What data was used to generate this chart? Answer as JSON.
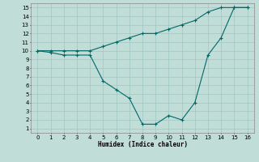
{
  "xlabel": "Humidex (Indice chaleur)",
  "bg_color": "#c0ddd8",
  "grid_color": "#9ec8c0",
  "line_color": "#006868",
  "xlim": [
    -0.5,
    16.5
  ],
  "ylim": [
    0.5,
    15.5
  ],
  "xticks": [
    0,
    1,
    2,
    3,
    4,
    5,
    6,
    7,
    8,
    9,
    10,
    11,
    12,
    13,
    14,
    15,
    16
  ],
  "yticks": [
    1,
    2,
    3,
    4,
    5,
    6,
    7,
    8,
    9,
    10,
    11,
    12,
    13,
    14,
    15
  ],
  "series1_x": [
    0,
    1,
    2,
    3,
    4,
    5,
    6,
    7,
    8,
    9,
    10,
    11,
    12,
    13,
    14,
    15,
    16
  ],
  "series1_y": [
    10,
    10,
    10,
    10,
    10,
    10.5,
    11,
    11.5,
    12,
    12,
    12.5,
    13,
    13.5,
    14.5,
    15,
    15,
    15
  ],
  "series2_x": [
    0,
    1,
    2,
    3,
    4,
    5,
    6,
    7,
    8,
    9,
    10,
    11,
    12,
    13,
    14,
    15,
    16
  ],
  "series2_y": [
    10,
    9.8,
    9.5,
    9.5,
    9.5,
    6.5,
    5.5,
    4.5,
    1.5,
    1.5,
    2.5,
    2,
    4,
    9.5,
    11.5,
    15,
    15
  ]
}
